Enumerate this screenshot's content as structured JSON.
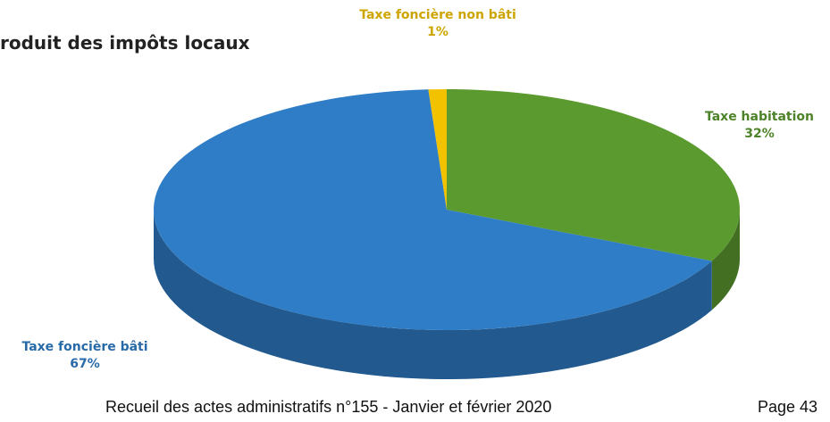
{
  "chart_data": {
    "type": "pie",
    "title": "roduit des impôts locaux",
    "categories": [
      "Taxe habitation",
      "Taxe foncière bâti",
      "Taxe foncière non bâti"
    ],
    "values": [
      32,
      67,
      1
    ],
    "value_labels": [
      "32%",
      "67%",
      "1%"
    ],
    "colors": [
      "#5b9a2f",
      "#2f7dc6",
      "#f2c200"
    ]
  },
  "footer": {
    "text": "Recueil des actes administratifs n°155 - Janvier et février 2020",
    "page": "Page 43"
  }
}
